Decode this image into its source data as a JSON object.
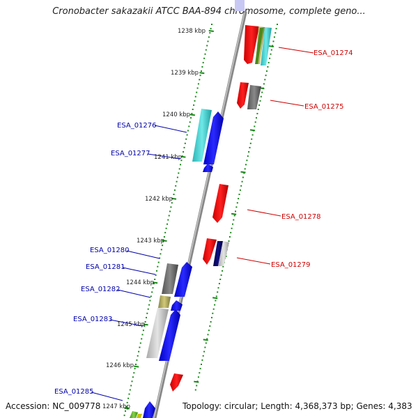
{
  "title": "Cronobacter sakazakii ATCC BAA-894 chromosome, complete geno...",
  "footer": {
    "accession": "Accession: NC_009778",
    "summary": "Topology: circular; Length: 4,368,373 bp; Genes: 4,383"
  },
  "colors": {
    "forward_label": "#cc0000",
    "reverse_label": "#0000aa",
    "tick": "#1a8a1a",
    "backbone": "#8a8a8a"
  },
  "kbp_labels": [
    "1238 kbp",
    "1239 kbp",
    "1240 kbp",
    "1241 kbp",
    "1242 kbp",
    "1243 kbp",
    "1244 kbp",
    "1245 kbp",
    "1246 kbp",
    "1247 kbp"
  ],
  "gene_labels": {
    "forward": [
      "ESA_01274",
      "ESA_01275",
      "ESA_01278",
      "ESA_01279"
    ],
    "reverse": [
      "ESA_01276",
      "ESA_01277",
      "ESA_01280",
      "ESA_01281",
      "ESA_01282",
      "ESA_01283",
      "ESA_01285"
    ]
  }
}
